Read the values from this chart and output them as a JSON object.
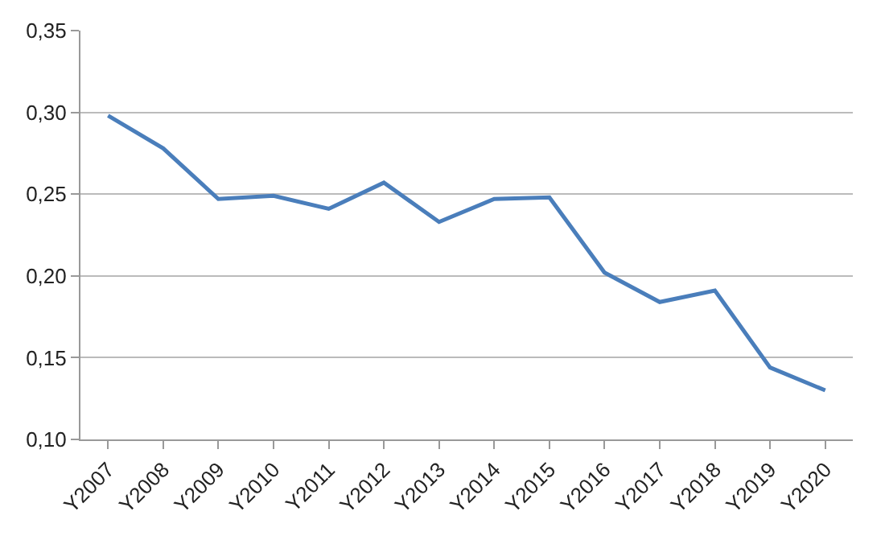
{
  "chart_data": {
    "type": "line",
    "categories": [
      "Y2007",
      "Y2008",
      "Y2009",
      "Y2010",
      "Y2011",
      "Y2012",
      "Y2013",
      "Y2014",
      "Y2015",
      "Y2016",
      "Y2017",
      "Y2018",
      "Y2019",
      "Y2020"
    ],
    "series": [
      {
        "color": "#4a7ebb",
        "values": [
          0.298,
          0.278,
          0.247,
          0.249,
          0.241,
          0.257,
          0.233,
          0.247,
          0.248,
          0.202,
          0.184,
          0.191,
          0.144,
          0.13
        ]
      }
    ],
    "ylim": [
      0.1,
      0.35
    ],
    "yticks": [
      {
        "value": 0.1,
        "label": "0,10"
      },
      {
        "value": 0.15,
        "label": "0,15"
      },
      {
        "value": 0.2,
        "label": "0,20"
      },
      {
        "value": 0.25,
        "label": "0,25"
      },
      {
        "value": 0.3,
        "label": "0,30"
      },
      {
        "value": 0.35,
        "label": "0,35"
      }
    ],
    "grid": "y",
    "legend": false,
    "marker": "none",
    "line_style": "solid"
  }
}
